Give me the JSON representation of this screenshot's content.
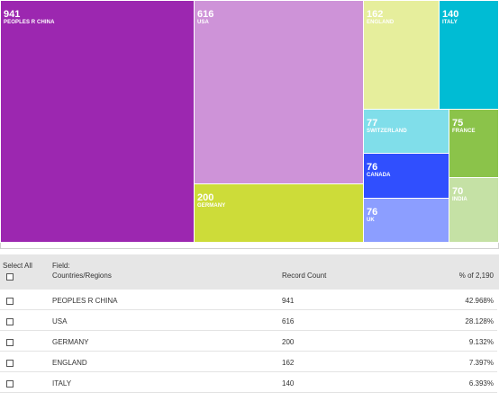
{
  "treemap": {
    "tiles": [
      {
        "name": "PEOPLES R CHINA",
        "value": "941",
        "color": "#9c27b0"
      },
      {
        "name": "USA",
        "value": "616",
        "color": "#ce93d8"
      },
      {
        "name": "GERMANY",
        "value": "200",
        "color": "#cddc39"
      },
      {
        "name": "ENGLAND",
        "value": "162",
        "color": "#e6ee9c"
      },
      {
        "name": "ITALY",
        "value": "140",
        "color": "#00bcd4"
      },
      {
        "name": "SWITZERLAND",
        "value": "77",
        "color": "#80deea"
      },
      {
        "name": "FRANCE",
        "value": "75",
        "color": "#8bc34a"
      },
      {
        "name": "CANADA",
        "value": "76",
        "color": "#304ffe"
      },
      {
        "name": "UK",
        "value": "76",
        "color": "#8c9eff"
      },
      {
        "name": "INDIA",
        "value": "70",
        "color": "#c5e1a5"
      }
    ]
  },
  "table": {
    "select_all_label": "Select All",
    "field_label": "Field:",
    "field_value": "Countries/Regions",
    "record_count_header": "Record Count",
    "percent_header": "% of 2,190",
    "rows": [
      {
        "name": "PEOPLES R CHINA",
        "count": "941",
        "percent": "42.968%"
      },
      {
        "name": "USA",
        "count": "616",
        "percent": "28.128%"
      },
      {
        "name": "GERMANY",
        "count": "200",
        "percent": "9.132%"
      },
      {
        "name": "ENGLAND",
        "count": "162",
        "percent": "7.397%"
      },
      {
        "name": "ITALY",
        "count": "140",
        "percent": "6.393%"
      }
    ]
  }
}
